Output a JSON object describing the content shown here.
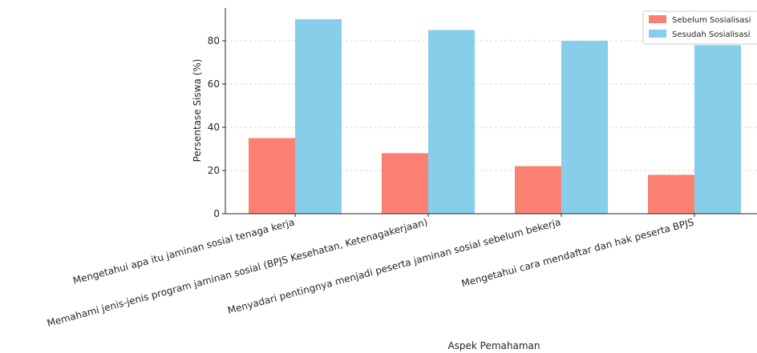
{
  "chart_data": {
    "type": "bar",
    "title": "",
    "xlabel": "Aspek Pemahaman",
    "ylabel": "Persentase Siswa (%)",
    "ylim": [
      0,
      95
    ],
    "yticks": [
      0,
      20,
      40,
      60,
      80
    ],
    "grid": true,
    "legend_position": "top-right",
    "categories": [
      "Mengetahui apa itu jaminan sosial tenaga kerja",
      "Memahami jenis-jenis program jaminan sosial (BPJS Kesehatan, Ketenagakerjaan)",
      "Menyadari pentingnya menjadi peserta jaminan sosial sebelum bekerja",
      "Mengetahui cara mendaftar dan hak peserta BPJS"
    ],
    "series": [
      {
        "name": "Sebelum Sosialisasi",
        "color": "#FA8072",
        "values": [
          35,
          28,
          22,
          18
        ]
      },
      {
        "name": "Sesudah Sosialisasi",
        "color": "#87CEEB",
        "values": [
          90,
          85,
          80,
          78
        ]
      }
    ]
  }
}
